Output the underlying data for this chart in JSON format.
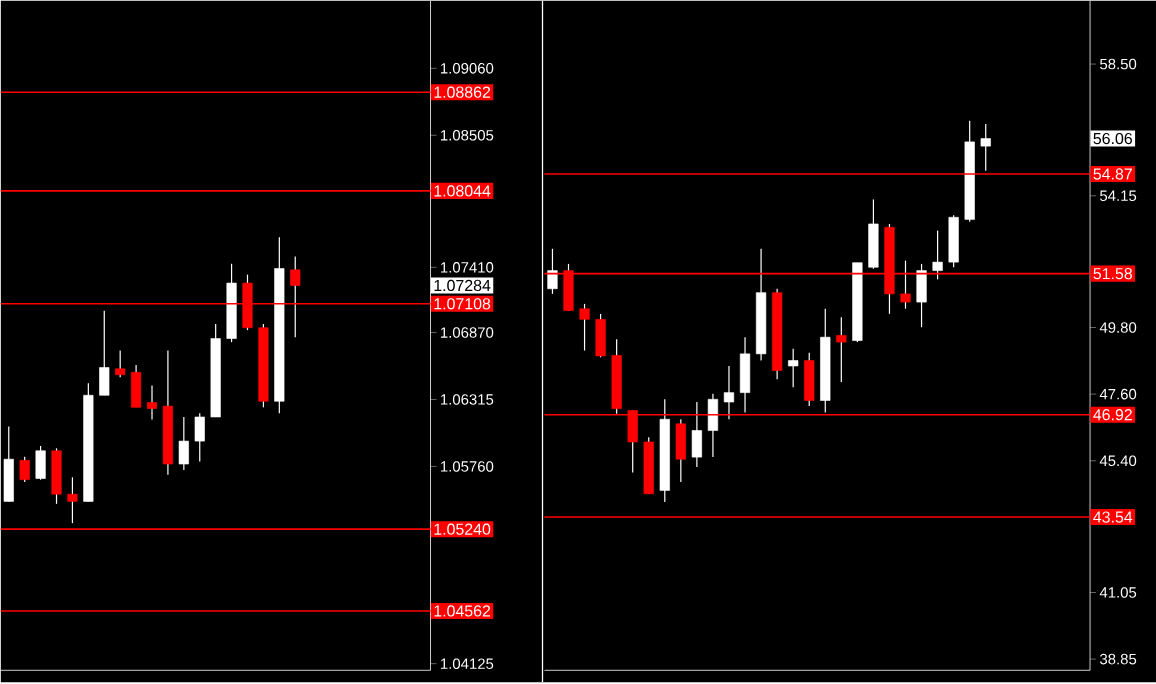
{
  "chart_data": [
    {
      "type": "candlestick",
      "categories": [
        null,
        null,
        null,
        null,
        null,
        null,
        null,
        null,
        null,
        null,
        null,
        null,
        null,
        null,
        null,
        null,
        null,
        null,
        null,
        null,
        null,
        null,
        null,
        null,
        null,
        null,
        null
      ],
      "ohlc": [
        [
          1.0547,
          1.0609,
          1.0547,
          1.0582
        ],
        [
          1.0581,
          1.0584,
          1.0563,
          1.0565
        ],
        [
          1.0566,
          1.0593,
          1.0565,
          1.0589
        ],
        [
          1.0589,
          1.0591,
          1.0545,
          1.0553
        ],
        [
          1.0553,
          1.0567,
          1.0529,
          1.0547
        ],
        [
          1.0547,
          1.0645,
          1.0547,
          1.0635
        ],
        [
          1.0635,
          1.0705,
          1.0635,
          1.0658
        ],
        [
          1.0657,
          1.0672,
          1.065,
          1.0652
        ],
        [
          1.0654,
          1.066,
          1.0625,
          1.0625
        ],
        [
          1.0629,
          1.0643,
          1.0615,
          1.0624
        ],
        [
          1.0626,
          1.0672,
          1.0569,
          1.0578
        ],
        [
          1.0578,
          1.0617,
          1.0573,
          1.0597
        ],
        [
          1.0597,
          1.062,
          1.058,
          1.0617
        ],
        [
          1.0617,
          1.0694,
          1.0617,
          1.0682
        ],
        [
          1.0682,
          1.0744,
          1.0679,
          1.0728
        ],
        [
          1.0728,
          1.0735,
          1.0689,
          1.0691
        ],
        [
          1.0691,
          1.0694,
          1.0625,
          1.063
        ],
        [
          1.063,
          1.0766,
          1.062,
          1.074
        ],
        [
          1.0739,
          1.075,
          1.0683,
          1.0726
        ],
        null,
        null,
        null,
        null,
        null,
        null,
        null,
        null
      ],
      "ylim": [
        1.0407,
        1.0962
      ],
      "yticks": [
        {
          "value": 1.0906,
          "label": "1.09060"
        },
        {
          "value": 1.08505,
          "label": "1.08505"
        },
        {
          "value": 1.0741,
          "label": "1.07410"
        },
        {
          "value": 1.0687,
          "label": "1.06870"
        },
        {
          "value": 1.06315,
          "label": "1.06315"
        },
        {
          "value": 1.0576,
          "label": "1.05760"
        },
        {
          "value": 1.04125,
          "label": "1.04125"
        }
      ],
      "ref_lines": [
        {
          "axis": "y",
          "value": 1.08862,
          "label": "1.08862",
          "color": "#ff0000"
        },
        {
          "axis": "y",
          "value": 1.08044,
          "label": "1.08044",
          "color": "#ff0000"
        },
        {
          "axis": "y",
          "value": 1.07108,
          "label": "1.07108",
          "color": "#ff0000"
        },
        {
          "axis": "y",
          "value": 1.0524,
          "label": "1.05240",
          "color": "#ff0000"
        },
        {
          "axis": "y",
          "value": 1.04562,
          "label": "1.04562",
          "color": "#ff0000"
        }
      ],
      "annotations": [
        "1.07284"
      ],
      "tick_labels": "y"
    },
    {
      "type": "candlestick",
      "categories": [
        null,
        null,
        null,
        null,
        null,
        null,
        null,
        null,
        null,
        null,
        null,
        null,
        null,
        null,
        null,
        null,
        null,
        null,
        null,
        null,
        null,
        null,
        null,
        null,
        null,
        null,
        null,
        null,
        null,
        null,
        null,
        null,
        null,
        null
      ],
      "ohlc": [
        [
          51.08,
          52.4,
          50.91,
          51.68
        ],
        [
          51.68,
          51.9,
          50.36,
          50.36
        ],
        [
          50.42,
          50.58,
          49.04,
          50.07
        ],
        [
          50.07,
          50.25,
          48.82,
          48.86
        ],
        [
          48.88,
          49.41,
          46.95,
          47.12
        ],
        [
          47.06,
          47.06,
          45.01,
          46.02
        ],
        [
          46.02,
          46.18,
          44.31,
          44.31
        ],
        [
          44.42,
          47.43,
          44.04,
          46.77
        ],
        [
          46.62,
          46.77,
          44.7,
          45.45
        ],
        [
          45.52,
          47.34,
          45.19,
          46.4
        ],
        [
          46.4,
          47.61,
          45.52,
          47.43
        ],
        [
          47.34,
          48.53,
          46.77,
          47.65
        ],
        [
          47.65,
          49.48,
          46.99,
          48.93
        ],
        [
          48.93,
          52.4,
          48.71,
          50.95
        ],
        [
          50.95,
          51.08,
          48.09,
          48.38
        ],
        [
          48.53,
          49.1,
          47.83,
          48.71
        ],
        [
          48.71,
          48.97,
          47.21,
          47.39
        ],
        [
          47.39,
          50.42,
          46.99,
          49.48
        ],
        [
          49.54,
          50.14,
          48.0,
          49.32
        ],
        [
          49.37,
          51.94,
          49.32,
          51.94
        ],
        [
          51.79,
          54.03,
          51.74,
          53.22
        ],
        [
          53.11,
          53.22,
          50.25,
          50.91
        ],
        [
          50.91,
          52.01,
          50.42,
          50.64
        ],
        [
          50.64,
          51.9,
          49.81,
          51.68
        ],
        [
          51.68,
          53.0,
          51.39,
          51.96
        ],
        [
          51.96,
          53.51,
          51.79,
          53.44
        ],
        [
          53.37,
          56.63,
          53.29,
          55.93
        ],
        [
          55.79,
          56.52,
          54.98,
          56.04
        ],
        null,
        null,
        null,
        null,
        null,
        null
      ],
      "ylim": [
        38.48,
        60.59
      ],
      "yticks": [
        {
          "value": 58.5,
          "label": "58.50"
        },
        {
          "value": 54.15,
          "label": "54.15"
        },
        {
          "value": 49.8,
          "label": "49.80"
        },
        {
          "value": 47.6,
          "label": "47.60"
        },
        {
          "value": 45.4,
          "label": "45.40"
        },
        {
          "value": 41.05,
          "label": "41.05"
        },
        {
          "value": 38.85,
          "label": "38.85"
        }
      ],
      "ref_lines": [
        {
          "axis": "y",
          "value": 54.87,
          "label": "54.87",
          "color": "#ff0000"
        },
        {
          "axis": "y",
          "value": 51.58,
          "label": "51.58",
          "color": "#ff0000"
        },
        {
          "axis": "y",
          "value": 46.92,
          "label": "46.92",
          "color": "#ff0000"
        },
        {
          "axis": "y",
          "value": 43.54,
          "label": "43.54",
          "color": "#ff0000"
        }
      ],
      "annotations": [
        "56.06"
      ],
      "tick_labels": "y"
    }
  ]
}
